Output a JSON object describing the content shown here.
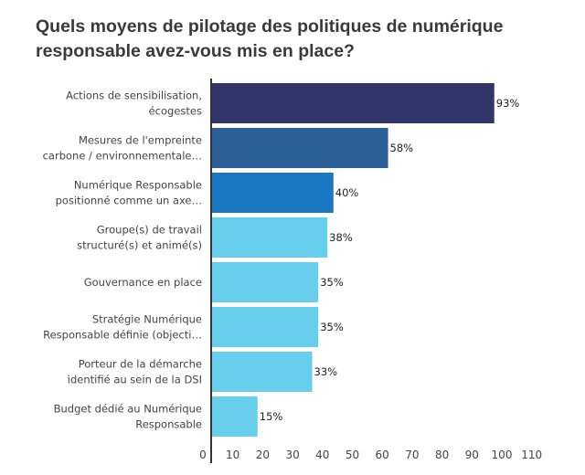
{
  "chart_data": {
    "type": "bar",
    "orientation": "horizontal",
    "title": "Quels moyens de pilotage des politiques de numérique responsable avez-vous mis en place?",
    "categories": [
      [
        "Actions de sensibilisation,",
        "écogestes"
      ],
      [
        "Mesures de l'empreinte",
        "carbone / environnementale…"
      ],
      [
        "Numérique Responsable",
        "positionné comme un axe…"
      ],
      [
        "Groupe(s) de travail",
        "structuré(s) et animé(s)"
      ],
      [
        "Gouvernance en place"
      ],
      [
        "Stratégie Numérique",
        "Responsable définie (objecti…"
      ],
      [
        "Porteur de la démarche",
        "identifié au sein de la DSI"
      ],
      [
        "Budget dédié au Numérique",
        "Responsable"
      ]
    ],
    "values": [
      93,
      58,
      40,
      38,
      35,
      35,
      33,
      15
    ],
    "value_labels": [
      "93%",
      "58%",
      "40%",
      "38%",
      "35%",
      "35%",
      "33%",
      "15%"
    ],
    "colors": [
      "#32376b",
      "#2c5f97",
      "#1a78c2",
      "#67cfec",
      "#67cfec",
      "#67cfec",
      "#67cfec",
      "#67cfec"
    ],
    "xticks": [
      0,
      10,
      20,
      30,
      40,
      50,
      60,
      70,
      80,
      90,
      100,
      110
    ],
    "xlim": [
      0,
      110
    ],
    "xlabel": "",
    "ylabel": "",
    "grid": false,
    "legend": "none"
  }
}
